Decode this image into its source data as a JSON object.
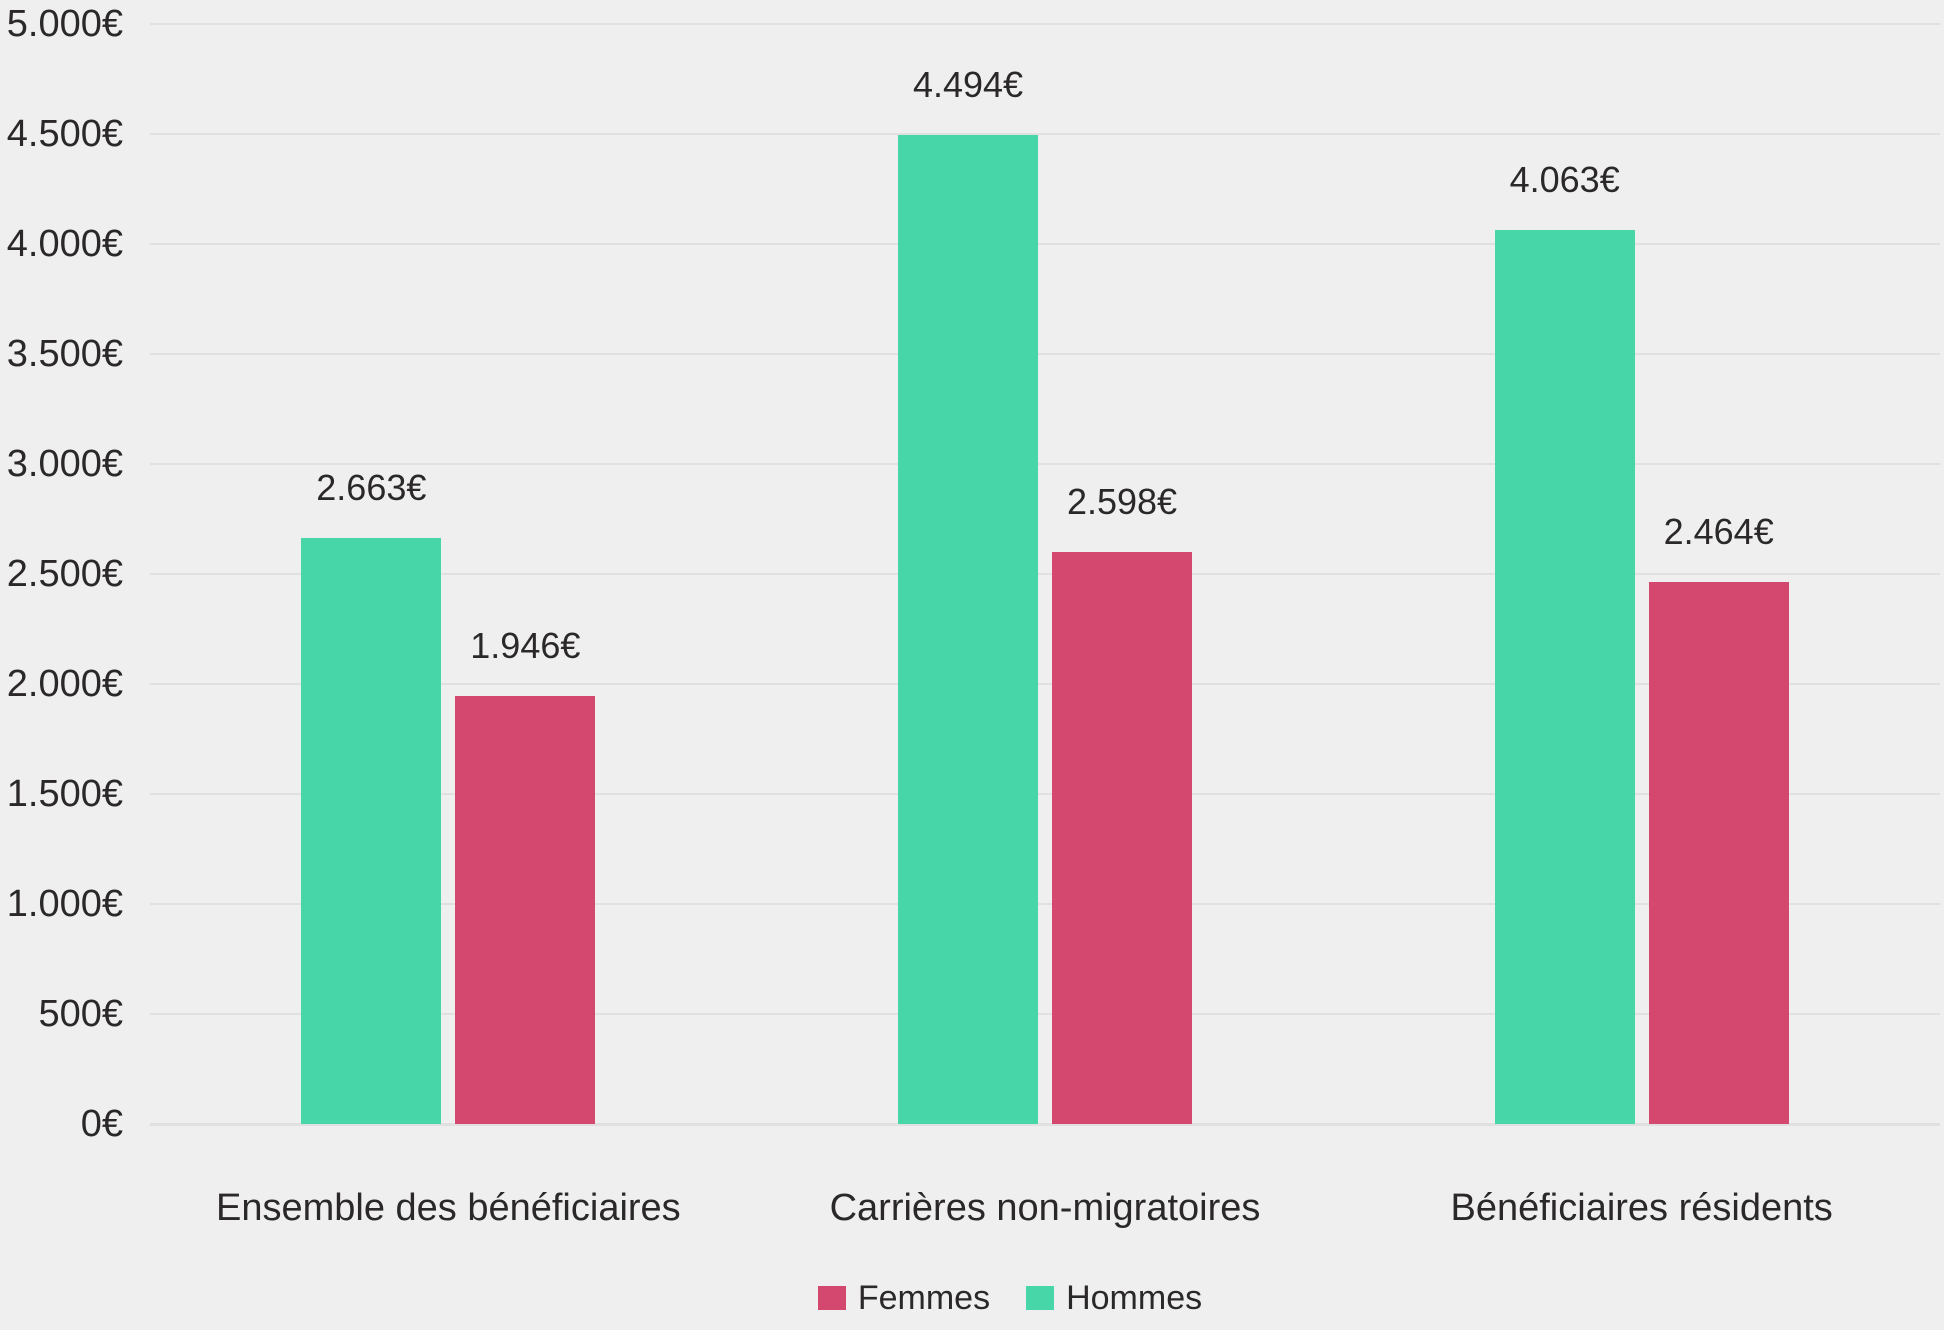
{
  "chart_data": {
    "type": "bar",
    "title": "",
    "xlabel": "",
    "ylabel": "",
    "categories": [
      "Ensemble des bénéficiaires",
      "Carrières non-migratoires",
      "Bénéficiaires résidents"
    ],
    "series": [
      {
        "name": "Hommes",
        "color": "#47d6a8",
        "values": [
          2663,
          4494,
          4063
        ],
        "labels": [
          "2.663€",
          "4.494€",
          "4.063€"
        ]
      },
      {
        "name": "Femmes",
        "color": "#d4486f",
        "values": [
          1946,
          2598,
          2464
        ],
        "labels": [
          "1.946€",
          "2.598€",
          "2.464€"
        ]
      }
    ],
    "legend": [
      {
        "name": "Femmes",
        "color": "#d4486f"
      },
      {
        "name": "Hommes",
        "color": "#47d6a8"
      }
    ],
    "legend_position": "bottom-center",
    "y_axis": {
      "min": 0,
      "max": 5000,
      "step": 500,
      "tick_labels": [
        "0€",
        "500€",
        "1.000€",
        "1.500€",
        "2.000€",
        "2.500€",
        "3.000€",
        "3.500€",
        "4.000€",
        "4.500€",
        "5.000€"
      ]
    },
    "grid": true,
    "colors": {
      "background": "#f0efef",
      "gridline": "#e1e0e0",
      "text": "#2b2829"
    }
  }
}
